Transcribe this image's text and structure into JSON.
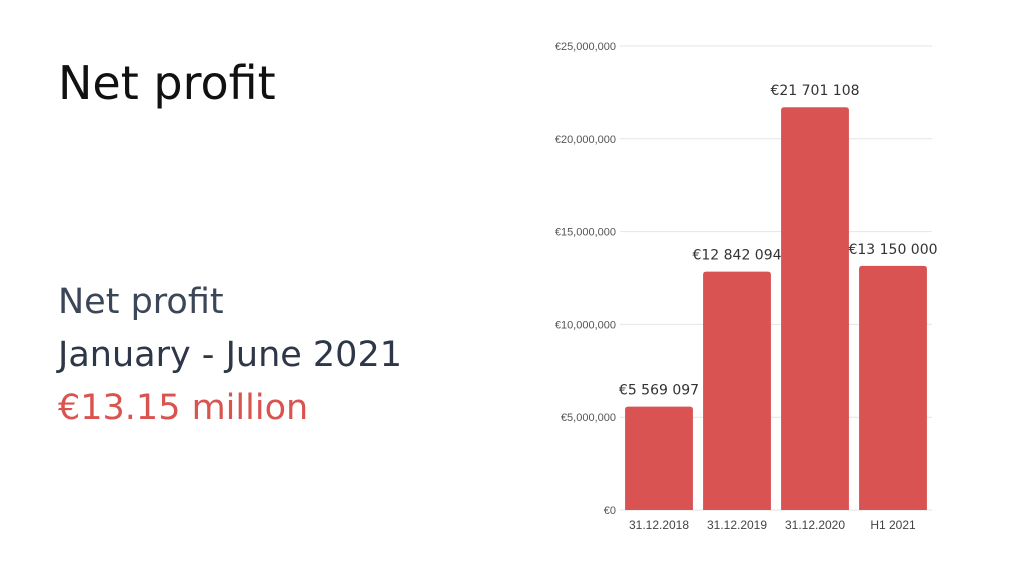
{
  "slide": {
    "title": "Net profit"
  },
  "summary": {
    "label": "Net profit",
    "period": "January - June 2021",
    "value": "€13.15 million"
  },
  "colors": {
    "bar": "#d95353",
    "accent_text": "#d9534f",
    "summary_text": "#333d4f"
  },
  "chart_data": {
    "type": "bar",
    "categories": [
      "31.12.2018",
      "31.12.2019",
      "31.12.2020",
      "H1 2021"
    ],
    "values": [
      5569097,
      12842094,
      21701108,
      13150000
    ],
    "value_labels": [
      "€5 569 097",
      "€12 842 094",
      "€21 701 108",
      "€13 150 000"
    ],
    "ylim": [
      0,
      25000000
    ],
    "yticks": [
      0,
      5000000,
      10000000,
      15000000,
      20000000,
      25000000
    ],
    "ytick_labels": [
      "€0",
      "€5,000,000",
      "€10,000,000",
      "€15,000,000",
      "€20,000,000",
      "€25,000,000"
    ],
    "grid": true,
    "title": "",
    "xlabel": "",
    "ylabel": ""
  }
}
